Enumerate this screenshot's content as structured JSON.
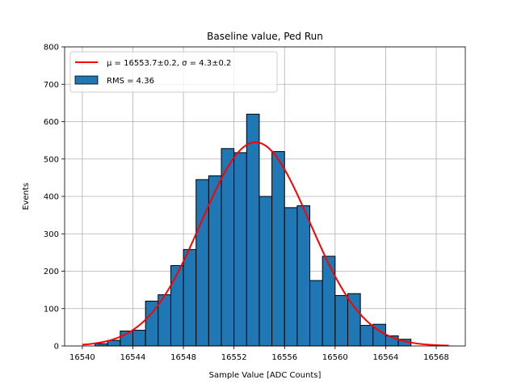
{
  "chart_data": {
    "type": "bar",
    "title": "Baseline value, Ped Run",
    "xlabel": "Sample Value [ADC Counts]",
    "ylabel": "Events",
    "xlim": [
      16538.6,
      16570.3
    ],
    "ylim": [
      0,
      800
    ],
    "x_ticks": [
      16540,
      16544,
      16548,
      16552,
      16556,
      16560,
      16564,
      16568
    ],
    "y_ticks": [
      0,
      100,
      200,
      300,
      400,
      500,
      600,
      700,
      800
    ],
    "grid": true,
    "legend_position": "top-left",
    "bins": [
      {
        "start": 16540.0,
        "end": 16541.0,
        "count": 0
      },
      {
        "start": 16541.0,
        "end": 16542.0,
        "count": 6
      },
      {
        "start": 16542.0,
        "end": 16543.0,
        "count": 15
      },
      {
        "start": 16543.0,
        "end": 16544.0,
        "count": 40
      },
      {
        "start": 16544.0,
        "end": 16545.0,
        "count": 42
      },
      {
        "start": 16545.0,
        "end": 16546.0,
        "count": 120
      },
      {
        "start": 16546.0,
        "end": 16547.0,
        "count": 137
      },
      {
        "start": 16547.0,
        "end": 16548.0,
        "count": 215
      },
      {
        "start": 16548.0,
        "end": 16549.0,
        "count": 258
      },
      {
        "start": 16549.0,
        "end": 16550.0,
        "count": 445
      },
      {
        "start": 16550.0,
        "end": 16551.0,
        "count": 455
      },
      {
        "start": 16551.0,
        "end": 16552.0,
        "count": 528
      },
      {
        "start": 16552.0,
        "end": 16553.0,
        "count": 517
      },
      {
        "start": 16553.0,
        "end": 16554.0,
        "count": 620
      },
      {
        "start": 16554.0,
        "end": 16555.0,
        "count": 400
      },
      {
        "start": 16555.0,
        "end": 16556.0,
        "count": 520
      },
      {
        "start": 16556.0,
        "end": 16557.0,
        "count": 370
      },
      {
        "start": 16557.0,
        "end": 16558.0,
        "count": 375
      },
      {
        "start": 16558.0,
        "end": 16559.0,
        "count": 175
      },
      {
        "start": 16559.0,
        "end": 16560.0,
        "count": 240
      },
      {
        "start": 16560.0,
        "end": 16561.0,
        "count": 135
      },
      {
        "start": 16561.0,
        "end": 16562.0,
        "count": 140
      },
      {
        "start": 16562.0,
        "end": 16563.0,
        "count": 55
      },
      {
        "start": 16563.0,
        "end": 16564.0,
        "count": 58
      },
      {
        "start": 16564.0,
        "end": 16565.0,
        "count": 27
      },
      {
        "start": 16565.0,
        "end": 16566.0,
        "count": 18
      },
      {
        "start": 16566.0,
        "end": 16567.0,
        "count": 0
      }
    ],
    "fit": {
      "type": "gaussian",
      "mu": 16553.7,
      "sigma": 4.3,
      "peak": 545,
      "x_range": [
        16540,
        16569
      ],
      "color": "#ff0000"
    },
    "series": [
      {
        "name": "$\\mu=16553.7\\pm0.2$, $\\sigma=4.3\\pm0.2$",
        "display": "μ = 16553.7±0.2, σ = 4.3±0.2",
        "type": "line",
        "color": "#ff0000"
      },
      {
        "name": "RMS = 4.36",
        "display": "RMS = 4.36",
        "type": "bar",
        "color": "#1f77b4"
      }
    ],
    "colors": {
      "bar_fill": "#1f77b4",
      "bar_edge": "#000000",
      "fit_line": "#ff0000",
      "grid": "#b0b0b0"
    }
  }
}
